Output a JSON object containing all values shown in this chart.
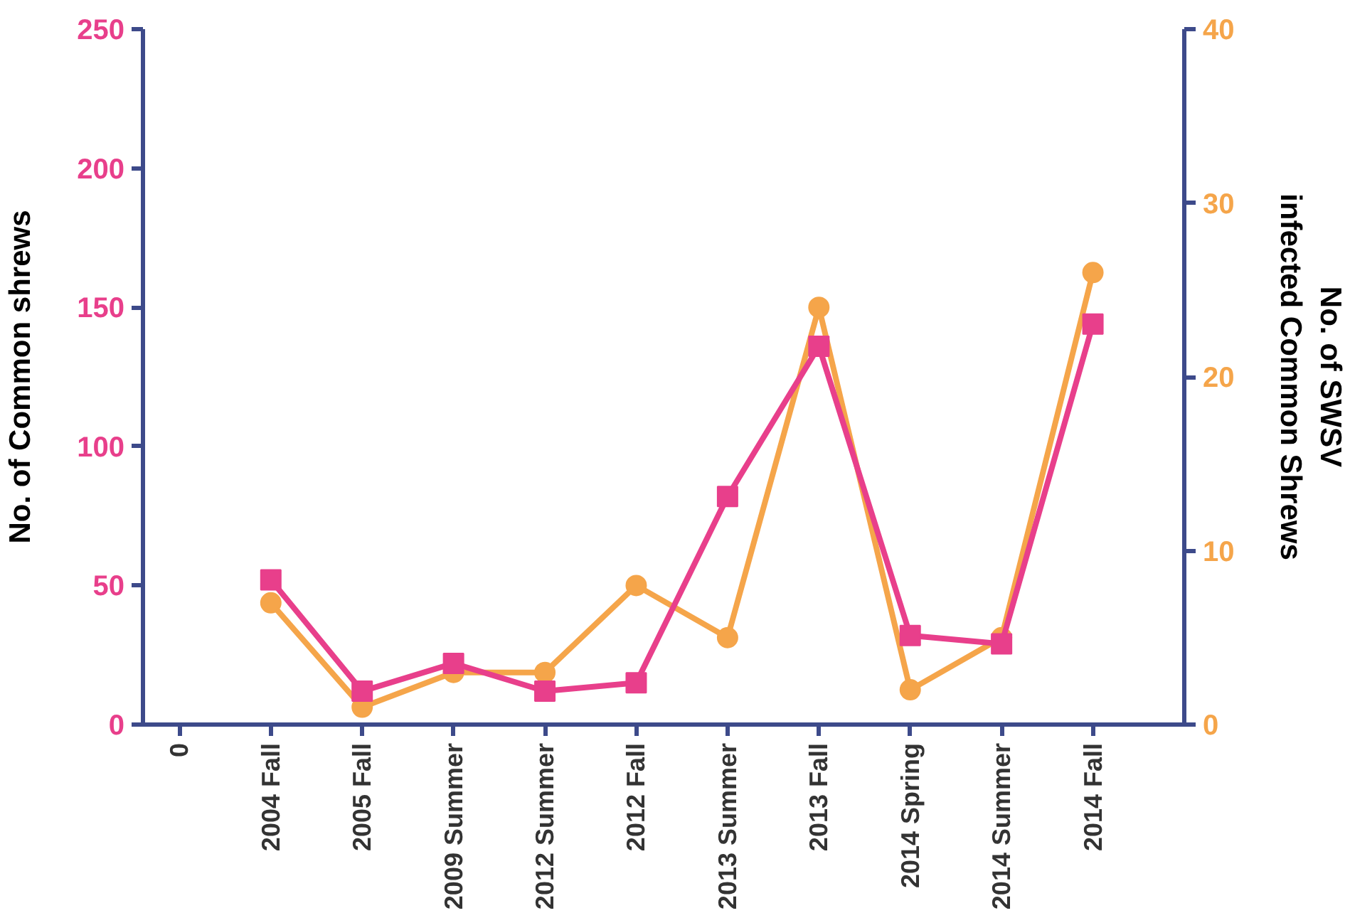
{
  "chart_data": {
    "type": "line",
    "ylabel": "No. of Common shrews",
    "y2label": "No. of SWSV\ninfected Common Shrews",
    "categories": [
      "0",
      "2004 Fall",
      "2005 Fall",
      "2009 Summer",
      "2012 Summer",
      "2012 Fall",
      "2013 Summer",
      "2013 Fall",
      "2014 Spring",
      "2014 Summer",
      "2014 Fall"
    ],
    "series": [
      {
        "color": "#f5a54a",
        "axis": "y2",
        "marker": "circle",
        "values": [
          null,
          7,
          1,
          3,
          3,
          8,
          5,
          24,
          2,
          5,
          26
        ]
      },
      {
        "color": "#e83f8b",
        "marker": "square",
        "values": [
          null,
          52,
          12,
          22,
          12,
          15,
          82,
          136,
          32,
          29,
          144
        ]
      }
    ],
    "ylim": [
      0,
      250
    ],
    "yticks": [
      0,
      50,
      100,
      150,
      200,
      250
    ],
    "y2lim": [
      0,
      40
    ],
    "y2ticks": [
      0,
      10,
      20,
      30,
      40
    ],
    "grid": false
  }
}
